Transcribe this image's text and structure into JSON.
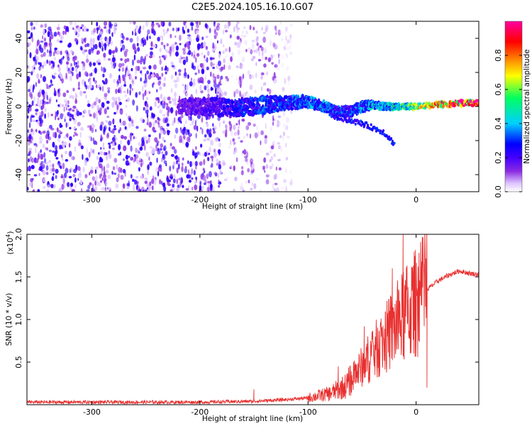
{
  "title": "C2E5.2024.105.16.10.G07",
  "chart_data": [
    {
      "type": "heatmap",
      "xlabel": "Height of straight line (km)",
      "ylabel": "Frequency (Hz)",
      "xlim": [
        -360,
        58
      ],
      "ylim": [
        -50,
        50
      ],
      "xticks": [
        -300,
        -200,
        -100,
        0
      ],
      "xtick_labels": [
        "-300",
        "-200",
        "-100",
        "0"
      ],
      "yticks": [
        -40,
        -20,
        0,
        20,
        40
      ],
      "ytick_labels": [
        "-40",
        "-20",
        "0",
        "20",
        "40"
      ],
      "colorbar": {
        "label": "Normalized spectral amplitude",
        "range": [
          0,
          1
        ],
        "ticks": [
          0.0,
          0.2,
          0.4,
          0.6,
          0.8
        ],
        "tick_labels": [
          "0.0",
          "0.2",
          "0.4",
          "0.6",
          "0.8"
        ],
        "colors": [
          "#ffffff",
          "#dcc2ff",
          "#8a2be2",
          "#4400ff",
          "#0000ff",
          "#00d0ff",
          "#00ff60",
          "#ffff00",
          "#ff8000",
          "#ff0000",
          "#ff00a0"
        ]
      },
      "regions": [
        {
          "name": "noise",
          "x_range": [
            -360,
            -178
          ],
          "freq_range": [
            -50,
            50
          ],
          "amplitude": 0.1
        },
        {
          "name": "sparse noise",
          "x_range": [
            -178,
            -125
          ],
          "freq_range": [
            -50,
            50
          ],
          "amplitude": 0.05
        },
        {
          "name": "faint noise",
          "x_range": [
            -125,
            -115
          ],
          "freq_range": [
            -50,
            50
          ],
          "amplitude": 0.02
        }
      ],
      "signal_trace": [
        {
          "x": -220,
          "f": 0,
          "width": 8,
          "amplitude": 0.15
        },
        {
          "x": -190,
          "f": 0,
          "width": 10,
          "amplitude": 0.2
        },
        {
          "x": -170,
          "f": -1,
          "width": 10,
          "amplitude": 0.25
        },
        {
          "x": -140,
          "f": 1,
          "width": 10,
          "amplitude": 0.3
        },
        {
          "x": -120,
          "f": 2,
          "width": 8,
          "amplitude": 0.3
        },
        {
          "x": -100,
          "f": 3,
          "width": 7,
          "amplitude": 0.35
        },
        {
          "x": -85,
          "f": 0,
          "width": 6,
          "amplitude": 0.35
        },
        {
          "x": -75,
          "f": -3,
          "width": 6,
          "amplitude": 0.3
        },
        {
          "x": -60,
          "f": -3,
          "width": 6,
          "amplitude": 0.3
        },
        {
          "x": -50,
          "f": 0,
          "width": 6,
          "amplitude": 0.35
        },
        {
          "x": -40,
          "f": 1,
          "width": 5,
          "amplitude": 0.4
        },
        {
          "x": -30,
          "f": 0,
          "width": 4,
          "amplitude": 0.4
        },
        {
          "x": -15,
          "f": 0,
          "width": 3,
          "amplitude": 0.5
        },
        {
          "x": 0,
          "f": 0,
          "width": 3,
          "amplitude": 0.6
        },
        {
          "x": 20,
          "f": 1,
          "width": 3,
          "amplitude": 0.8
        },
        {
          "x": 40,
          "f": 2,
          "width": 3,
          "amplitude": 0.9
        },
        {
          "x": 58,
          "f": 2,
          "width": 3,
          "amplitude": 0.95
        }
      ],
      "lower_branch": [
        {
          "x": -80,
          "f": -5
        },
        {
          "x": -50,
          "f": -10
        },
        {
          "x": -30,
          "f": -15
        },
        {
          "x": -20,
          "f": -22
        }
      ]
    },
    {
      "type": "line",
      "xlabel": "Height of straight line (km)",
      "ylabel": "SNR (10 * v/v)",
      "y_multiplier": "(x10",
      "y_multiplier_exp": "4",
      "y_multiplier_close": ")",
      "xlim": [
        -360,
        58
      ],
      "ylim": [
        0,
        2.0
      ],
      "xticks": [
        -300,
        -200,
        -100,
        0
      ],
      "xtick_labels": [
        "-300",
        "-200",
        "-100",
        "0"
      ],
      "yticks": [
        0.5,
        1.0,
        1.5,
        2.0
      ],
      "ytick_labels": [
        "0.5",
        "1.0",
        "1.5",
        "2.0"
      ],
      "series": [
        {
          "color": "#e8302f",
          "envelope": [
            {
              "x": -360,
              "y": 0.03
            },
            {
              "x": -200,
              "y": 0.03
            },
            {
              "x": -150,
              "y": 0.04
            },
            {
              "x": -120,
              "y": 0.06
            },
            {
              "x": -100,
              "y": 0.08
            },
            {
              "x": -80,
              "y": 0.13
            },
            {
              "x": -65,
              "y": 0.22
            },
            {
              "x": -50,
              "y": 0.45
            },
            {
              "x": -40,
              "y": 0.6
            },
            {
              "x": -30,
              "y": 0.75
            },
            {
              "x": -20,
              "y": 0.9
            },
            {
              "x": -10,
              "y": 1.05
            },
            {
              "x": 0,
              "y": 1.2
            },
            {
              "x": 10,
              "y": 1.35
            },
            {
              "x": 20,
              "y": 1.45
            },
            {
              "x": 30,
              "y": 1.52
            },
            {
              "x": 40,
              "y": 1.57
            },
            {
              "x": 50,
              "y": 1.54
            },
            {
              "x": 58,
              "y": 1.53
            }
          ],
          "spikes": [
            {
              "x": -150,
              "y": 0.18
            },
            {
              "x": -72,
              "y": 0.45
            },
            {
              "x": -48,
              "y": 0.92
            },
            {
              "x": -22,
              "y": 1.6
            },
            {
              "x": -12,
              "y": 2.0
            },
            {
              "x": 10,
              "y": 1.65
            },
            {
              "x": 10,
              "y": 0.2
            }
          ]
        }
      ]
    }
  ]
}
